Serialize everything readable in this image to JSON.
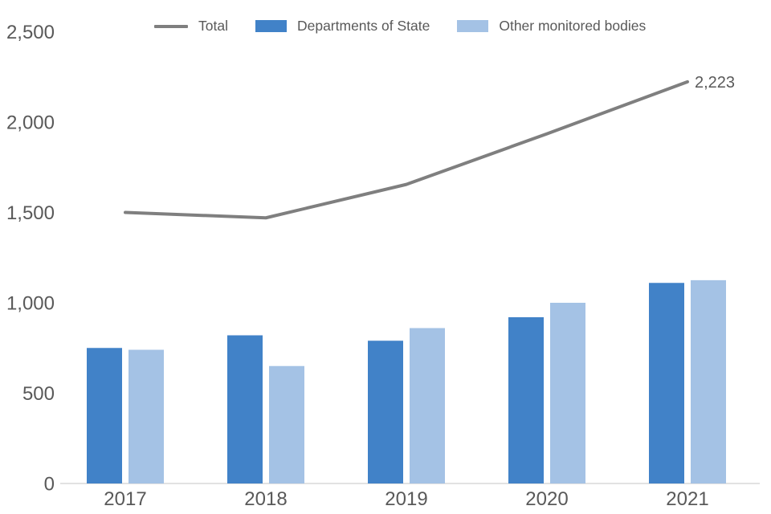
{
  "colors": {
    "background": "#FFFFFF",
    "axis_text": "#595959",
    "axis_line": "#D9D9D9",
    "total_line": "#7F7F7F",
    "departments_bar": "#4182C8",
    "other_bodies_bar": "#A4C2E5"
  },
  "legend": {
    "swatch_icons": [
      "line-swatch-icon",
      "square-swatch-icon",
      "square-swatch-icon"
    ]
  },
  "chart_data": {
    "type": "bar",
    "title": "",
    "xlabel": "",
    "ylabel": "",
    "categories": [
      "2017",
      "2018",
      "2019",
      "2020",
      "2021"
    ],
    "series": [
      {
        "name": "Total",
        "type": "line",
        "color": "#7F7F7F",
        "values": [
          1500,
          1470,
          1655,
          1935,
          2223
        ],
        "end_label": "2,223"
      },
      {
        "name": "Departments of State",
        "type": "bar",
        "color": "#4182C8",
        "values": [
          750,
          820,
          790,
          920,
          1110
        ]
      },
      {
        "name": "Other monitored bodies",
        "type": "bar",
        "color": "#A4C2E5",
        "values": [
          740,
          650,
          860,
          1000,
          1125
        ]
      }
    ],
    "ylim": [
      0,
      2500
    ],
    "y_tick_step": 500,
    "y_tick_labels": [
      "0",
      "500",
      "1,000",
      "1,500",
      "2,000",
      "2,500"
    ],
    "grid": false,
    "legend_position": "top"
  }
}
